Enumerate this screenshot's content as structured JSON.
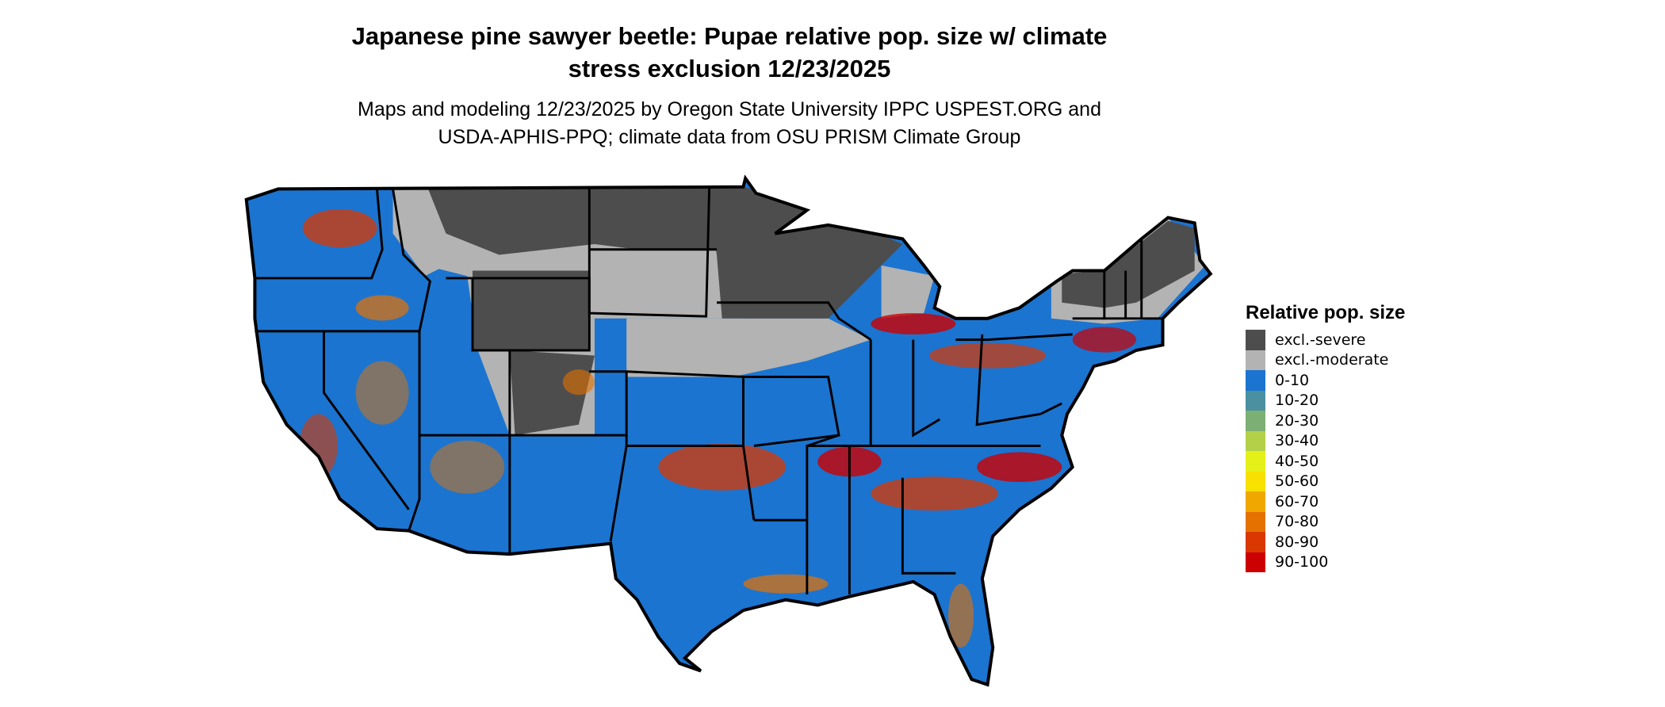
{
  "title": "Japanese pine sawyer beetle: Pupae relative pop. size w/ climate stress exclusion 12/23/2025",
  "title_lines": [
    "Japanese pine sawyer beetle: Pupae relative pop. size w/ climate",
    "stress exclusion 12/23/2025"
  ],
  "subtitle_lines": [
    "Maps and modeling 12/23/2025 by Oregon State University IPPC USPEST.ORG and",
    "USDA-APHIS-PPQ; climate data from OSU PRISM Climate Group"
  ],
  "legend": {
    "title": "Relative pop. size",
    "items": [
      {
        "label": "excl.-severe",
        "color": "#4d4d4d"
      },
      {
        "label": "excl.-moderate",
        "color": "#b3b3b3"
      },
      {
        "label": "0-10",
        "color": "#1b74d0"
      },
      {
        "label": "10-20",
        "color": "#4a90a0"
      },
      {
        "label": "20-30",
        "color": "#7caf74"
      },
      {
        "label": "30-40",
        "color": "#b3d049"
      },
      {
        "label": "40-50",
        "color": "#e5f019"
      },
      {
        "label": "50-60",
        "color": "#f8e000"
      },
      {
        "label": "60-70",
        "color": "#f0a800"
      },
      {
        "label": "70-80",
        "color": "#e57200"
      },
      {
        "label": "80-90",
        "color": "#d93800"
      },
      {
        "label": "90-100",
        "color": "#cc0000"
      }
    ]
  },
  "map": {
    "region": "Contiguous United States",
    "borders_color": "#000000"
  }
}
